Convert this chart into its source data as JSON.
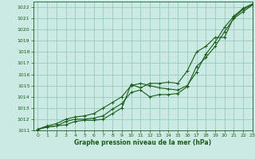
{
  "xlabel": "Graphe pression niveau de la mer (hPa)",
  "xlim": [
    -0.5,
    23
  ],
  "ylim": [
    1011,
    1022.5
  ],
  "yticks": [
    1011,
    1012,
    1013,
    1014,
    1015,
    1016,
    1017,
    1018,
    1019,
    1020,
    1021,
    1022
  ],
  "xticks": [
    0,
    1,
    2,
    3,
    4,
    5,
    6,
    7,
    8,
    9,
    10,
    11,
    12,
    13,
    14,
    15,
    16,
    17,
    18,
    19,
    20,
    21,
    22,
    23
  ],
  "background_color": "#cceae4",
  "grid_color": "#99ccbb",
  "line_color": "#1a5c1a",
  "line1_y": [
    1011.1,
    1011.3,
    1011.4,
    1011.5,
    1011.8,
    1011.9,
    1011.9,
    1012.0,
    1012.5,
    1013.0,
    1015.1,
    1014.8,
    1015.2,
    1015.2,
    1015.3,
    1015.2,
    1016.3,
    1018.0,
    1018.5,
    1019.3,
    1019.3,
    1021.1,
    1021.8,
    1022.2
  ],
  "line2_y": [
    1011.1,
    1011.3,
    1011.4,
    1011.8,
    1012.0,
    1012.0,
    1012.1,
    1012.3,
    1012.9,
    1013.4,
    1014.4,
    1014.6,
    1014.0,
    1014.2,
    1014.2,
    1014.3,
    1014.9,
    1016.7,
    1017.5,
    1018.5,
    1019.8,
    1021.0,
    1021.6,
    1022.2
  ],
  "line3_y": [
    1011.1,
    1011.4,
    1011.6,
    1012.0,
    1012.2,
    1012.3,
    1012.5,
    1013.0,
    1013.5,
    1014.0,
    1015.0,
    1015.2,
    1015.0,
    1014.8,
    1014.7,
    1014.6,
    1015.0,
    1016.2,
    1017.8,
    1018.9,
    1020.2,
    1021.2,
    1021.9,
    1022.3
  ]
}
